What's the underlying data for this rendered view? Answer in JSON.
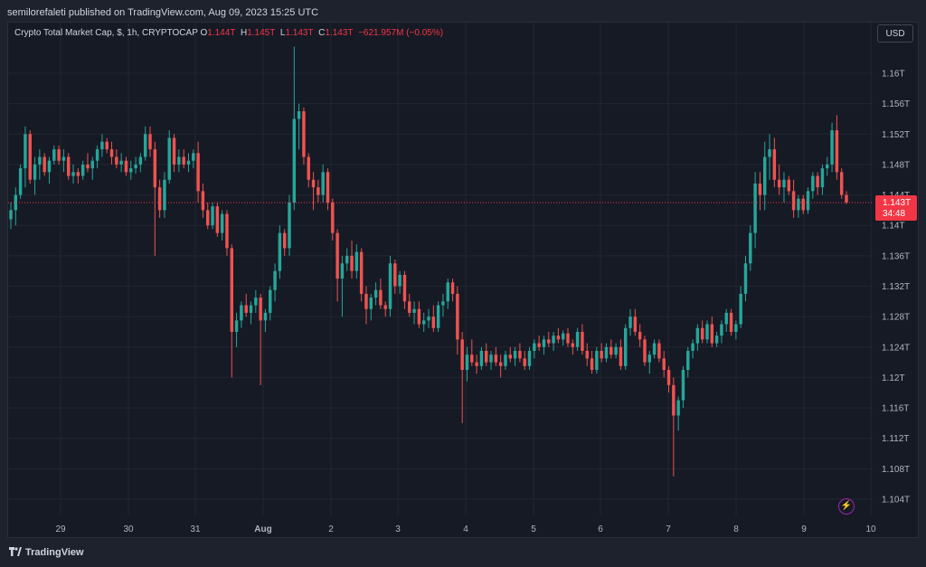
{
  "published_text": "semilorefaleti published on TradingView.com, Aug 09, 2023 15:25 UTC",
  "legend": {
    "symbol": "Crypto Total Market Cap, $, 1h, CRYPTOCAP",
    "o_label": "O",
    "o_value": "1.144T",
    "h_label": "H",
    "h_value": "1.145T",
    "l_label": "L",
    "l_value": "1.143T",
    "c_label": "C",
    "c_value": "1.143T",
    "change": "−621.957M (−0.05%)"
  },
  "currency_button": "USD",
  "footer_brand": "TradingView",
  "colors": {
    "up": "#26a69a",
    "down": "#ef5350",
    "background": "#161a25",
    "grid": "#222631",
    "last_price_bg": "#f23645"
  },
  "icons": {
    "flash": "lightning-icon",
    "brand": "tradingview-logo-icon"
  },
  "chart_data": {
    "type": "candlestick",
    "ylim": [
      1.102,
      1.164
    ],
    "y_unit": "T",
    "y_ticks": [
      "1.16T",
      "1.156T",
      "1.152T",
      "1.148T",
      "1.144T",
      "1.14T",
      "1.136T",
      "1.132T",
      "1.128T",
      "1.124T",
      "1.12T",
      "1.116T",
      "1.112T",
      "1.108T",
      "1.104T"
    ],
    "y_tick_values": [
      1.16,
      1.156,
      1.152,
      1.148,
      1.144,
      1.14,
      1.136,
      1.132,
      1.128,
      1.124,
      1.12,
      1.116,
      1.112,
      1.108,
      1.104
    ],
    "x_ticks": [
      "29",
      "30",
      "31",
      "Aug",
      "2",
      "3",
      "4",
      "5",
      "6",
      "7",
      "8",
      "9",
      "10"
    ],
    "last_price": {
      "value": 1.143,
      "label": "1.143T",
      "countdown": "34:48"
    },
    "ohlc": [
      [
        1.1408,
        1.143,
        1.1395,
        1.142
      ],
      [
        1.142,
        1.145,
        1.14,
        1.144
      ],
      [
        1.144,
        1.148,
        1.1435,
        1.1475
      ],
      [
        1.1475,
        1.153,
        1.145,
        1.152
      ],
      [
        1.152,
        1.1525,
        1.1455,
        1.146
      ],
      [
        1.146,
        1.149,
        1.144,
        1.148
      ],
      [
        1.148,
        1.15,
        1.146,
        1.149
      ],
      [
        1.149,
        1.1495,
        1.1465,
        1.147
      ],
      [
        1.147,
        1.149,
        1.1455,
        1.1485
      ],
      [
        1.1485,
        1.1505,
        1.148,
        1.15
      ],
      [
        1.15,
        1.1505,
        1.148,
        1.1485
      ],
      [
        1.1485,
        1.15,
        1.147,
        1.149
      ],
      [
        1.149,
        1.1495,
        1.146,
        1.1465
      ],
      [
        1.1465,
        1.148,
        1.1455,
        1.147
      ],
      [
        1.147,
        1.1475,
        1.1455,
        1.1465
      ],
      [
        1.1465,
        1.1485,
        1.146,
        1.148
      ],
      [
        1.148,
        1.1495,
        1.147,
        1.1475
      ],
      [
        1.1475,
        1.149,
        1.146,
        1.1485
      ],
      [
        1.1485,
        1.1505,
        1.1475,
        1.15
      ],
      [
        1.15,
        1.152,
        1.149,
        1.151
      ],
      [
        1.151,
        1.1515,
        1.1495,
        1.15
      ],
      [
        1.15,
        1.151,
        1.148,
        1.149
      ],
      [
        1.149,
        1.15,
        1.1475,
        1.148
      ],
      [
        1.148,
        1.1495,
        1.147,
        1.1485
      ],
      [
        1.1485,
        1.149,
        1.1465,
        1.147
      ],
      [
        1.147,
        1.1485,
        1.146,
        1.1475
      ],
      [
        1.1475,
        1.149,
        1.1468,
        1.148
      ],
      [
        1.148,
        1.1495,
        1.147,
        1.149
      ],
      [
        1.149,
        1.153,
        1.1485,
        1.152
      ],
      [
        1.152,
        1.153,
        1.149,
        1.15
      ],
      [
        1.15,
        1.151,
        1.136,
        1.145
      ],
      [
        1.145,
        1.146,
        1.141,
        1.142
      ],
      [
        1.142,
        1.147,
        1.141,
        1.146
      ],
      [
        1.146,
        1.1525,
        1.1455,
        1.1515
      ],
      [
        1.1515,
        1.152,
        1.147,
        1.148
      ],
      [
        1.148,
        1.15,
        1.147,
        1.149
      ],
      [
        1.149,
        1.15,
        1.1475,
        1.148
      ],
      [
        1.148,
        1.1495,
        1.147,
        1.1485
      ],
      [
        1.1485,
        1.15,
        1.1475,
        1.1495
      ],
      [
        1.1495,
        1.151,
        1.143,
        1.1445
      ],
      [
        1.1445,
        1.1455,
        1.141,
        1.142
      ],
      [
        1.142,
        1.143,
        1.1395,
        1.14
      ],
      [
        1.14,
        1.143,
        1.1395,
        1.1425
      ],
      [
        1.1425,
        1.143,
        1.1385,
        1.139
      ],
      [
        1.139,
        1.142,
        1.138,
        1.1415
      ],
      [
        1.1415,
        1.142,
        1.136,
        1.137
      ],
      [
        1.137,
        1.1375,
        1.12,
        1.126
      ],
      [
        1.126,
        1.1285,
        1.124,
        1.1275
      ],
      [
        1.1275,
        1.13,
        1.1265,
        1.1295
      ],
      [
        1.1295,
        1.131,
        1.128,
        1.1285
      ],
      [
        1.1285,
        1.13,
        1.127,
        1.1295
      ],
      [
        1.1295,
        1.1315,
        1.1285,
        1.1305
      ],
      [
        1.1305,
        1.131,
        1.119,
        1.1275
      ],
      [
        1.1275,
        1.129,
        1.126,
        1.1285
      ],
      [
        1.1285,
        1.132,
        1.1275,
        1.1315
      ],
      [
        1.1315,
        1.135,
        1.13,
        1.134
      ],
      [
        1.134,
        1.14,
        1.133,
        1.139
      ],
      [
        1.139,
        1.1395,
        1.136,
        1.137
      ],
      [
        1.137,
        1.144,
        1.136,
        1.143
      ],
      [
        1.143,
        1.1635,
        1.142,
        1.154
      ],
      [
        1.154,
        1.156,
        1.15,
        1.155
      ],
      [
        1.155,
        1.1555,
        1.148,
        1.149
      ],
      [
        1.149,
        1.1495,
        1.145,
        1.146
      ],
      [
        1.146,
        1.147,
        1.142,
        1.145
      ],
      [
        1.145,
        1.146,
        1.143,
        1.144
      ],
      [
        1.144,
        1.148,
        1.143,
        1.147
      ],
      [
        1.147,
        1.1475,
        1.142,
        1.143
      ],
      [
        1.143,
        1.1435,
        1.138,
        1.139
      ],
      [
        1.139,
        1.1395,
        1.13,
        1.133
      ],
      [
        1.133,
        1.136,
        1.128,
        1.135
      ],
      [
        1.135,
        1.137,
        1.134,
        1.136
      ],
      [
        1.136,
        1.138,
        1.133,
        1.134
      ],
      [
        1.134,
        1.1375,
        1.133,
        1.1365
      ],
      [
        1.1365,
        1.137,
        1.13,
        1.131
      ],
      [
        1.131,
        1.132,
        1.127,
        1.129
      ],
      [
        1.129,
        1.131,
        1.1275,
        1.1305
      ],
      [
        1.1305,
        1.1325,
        1.1295,
        1.1315
      ],
      [
        1.1315,
        1.133,
        1.129,
        1.1295
      ],
      [
        1.1295,
        1.13,
        1.128,
        1.129
      ],
      [
        1.129,
        1.136,
        1.128,
        1.135
      ],
      [
        1.135,
        1.1355,
        1.131,
        1.132
      ],
      [
        1.132,
        1.134,
        1.131,
        1.1335
      ],
      [
        1.1335,
        1.134,
        1.129,
        1.13
      ],
      [
        1.13,
        1.131,
        1.128,
        1.1285
      ],
      [
        1.1285,
        1.13,
        1.127,
        1.129
      ],
      [
        1.129,
        1.13,
        1.1265,
        1.127
      ],
      [
        1.127,
        1.1285,
        1.126,
        1.1275
      ],
      [
        1.1275,
        1.129,
        1.1265,
        1.128
      ],
      [
        1.128,
        1.1295,
        1.126,
        1.1265
      ],
      [
        1.1265,
        1.13,
        1.126,
        1.1295
      ],
      [
        1.1295,
        1.131,
        1.128,
        1.13
      ],
      [
        1.13,
        1.133,
        1.129,
        1.1325
      ],
      [
        1.1325,
        1.133,
        1.13,
        1.131
      ],
      [
        1.131,
        1.132,
        1.123,
        1.125
      ],
      [
        1.125,
        1.126,
        1.114,
        1.121
      ],
      [
        1.121,
        1.124,
        1.1195,
        1.123
      ],
      [
        1.123,
        1.125,
        1.1215,
        1.122
      ],
      [
        1.122,
        1.123,
        1.1205,
        1.1215
      ],
      [
        1.1215,
        1.124,
        1.121,
        1.1235
      ],
      [
        1.1235,
        1.1245,
        1.1215,
        1.122
      ],
      [
        1.122,
        1.1235,
        1.121,
        1.123
      ],
      [
        1.123,
        1.124,
        1.1215,
        1.122
      ],
      [
        1.122,
        1.123,
        1.12,
        1.1215
      ],
      [
        1.1215,
        1.1235,
        1.121,
        1.123
      ],
      [
        1.123,
        1.124,
        1.122,
        1.1225
      ],
      [
        1.1225,
        1.124,
        1.1215,
        1.1235
      ],
      [
        1.1235,
        1.1245,
        1.122,
        1.1225
      ],
      [
        1.1225,
        1.1235,
        1.121,
        1.1215
      ],
      [
        1.1215,
        1.124,
        1.121,
        1.1235
      ],
      [
        1.1235,
        1.125,
        1.1225,
        1.1245
      ],
      [
        1.1245,
        1.1255,
        1.1235,
        1.124
      ],
      [
        1.124,
        1.1255,
        1.123,
        1.125
      ],
      [
        1.125,
        1.126,
        1.124,
        1.1245
      ],
      [
        1.1245,
        1.126,
        1.1235,
        1.1255
      ],
      [
        1.1255,
        1.1265,
        1.1245,
        1.125
      ],
      [
        1.125,
        1.1262,
        1.1242,
        1.1258
      ],
      [
        1.1258,
        1.1265,
        1.124,
        1.1245
      ],
      [
        1.1245,
        1.125,
        1.123,
        1.124
      ],
      [
        1.124,
        1.1265,
        1.1235,
        1.126
      ],
      [
        1.126,
        1.127,
        1.123,
        1.1235
      ],
      [
        1.1235,
        1.1245,
        1.1215,
        1.1225
      ],
      [
        1.1225,
        1.1235,
        1.1205,
        1.121
      ],
      [
        1.121,
        1.124,
        1.1205,
        1.1235
      ],
      [
        1.1235,
        1.1245,
        1.122,
        1.1225
      ],
      [
        1.1225,
        1.1245,
        1.122,
        1.124
      ],
      [
        1.124,
        1.125,
        1.1225,
        1.123
      ],
      [
        1.123,
        1.1245,
        1.1225,
        1.124
      ],
      [
        1.124,
        1.125,
        1.121,
        1.1215
      ],
      [
        1.1215,
        1.127,
        1.121,
        1.1265
      ],
      [
        1.1265,
        1.129,
        1.1255,
        1.128
      ],
      [
        1.128,
        1.129,
        1.1255,
        1.126
      ],
      [
        1.126,
        1.127,
        1.124,
        1.125
      ],
      [
        1.125,
        1.1255,
        1.1215,
        1.122
      ],
      [
        1.122,
        1.1235,
        1.1205,
        1.123
      ],
      [
        1.123,
        1.125,
        1.1225,
        1.1245
      ],
      [
        1.1245,
        1.125,
        1.122,
        1.1225
      ],
      [
        1.1225,
        1.1235,
        1.12,
        1.121
      ],
      [
        1.121,
        1.1215,
        1.118,
        1.119
      ],
      [
        1.119,
        1.12,
        1.107,
        1.115
      ],
      [
        1.115,
        1.1175,
        1.113,
        1.117
      ],
      [
        1.117,
        1.1215,
        1.116,
        1.121
      ],
      [
        1.121,
        1.124,
        1.12,
        1.1235
      ],
      [
        1.1235,
        1.125,
        1.1225,
        1.1245
      ],
      [
        1.1245,
        1.127,
        1.1235,
        1.1265
      ],
      [
        1.1265,
        1.1275,
        1.1245,
        1.125
      ],
      [
        1.125,
        1.1275,
        1.1245,
        1.127
      ],
      [
        1.127,
        1.128,
        1.124,
        1.1245
      ],
      [
        1.1245,
        1.126,
        1.124,
        1.1255
      ],
      [
        1.1255,
        1.1275,
        1.1245,
        1.127
      ],
      [
        1.127,
        1.129,
        1.126,
        1.1285
      ],
      [
        1.1285,
        1.129,
        1.1255,
        1.126
      ],
      [
        1.126,
        1.1275,
        1.125,
        1.127
      ],
      [
        1.127,
        1.132,
        1.1265,
        1.131
      ],
      [
        1.131,
        1.136,
        1.13,
        1.135
      ],
      [
        1.135,
        1.14,
        1.134,
        1.139
      ],
      [
        1.139,
        1.147,
        1.137,
        1.1455
      ],
      [
        1.1455,
        1.147,
        1.142,
        1.144
      ],
      [
        1.144,
        1.151,
        1.142,
        1.149
      ],
      [
        1.149,
        1.152,
        1.146,
        1.15
      ],
      [
        1.15,
        1.1515,
        1.145,
        1.146
      ],
      [
        1.146,
        1.148,
        1.144,
        1.145
      ],
      [
        1.145,
        1.147,
        1.143,
        1.146
      ],
      [
        1.146,
        1.1465,
        1.144,
        1.1445
      ],
      [
        1.1445,
        1.146,
        1.141,
        1.142
      ],
      [
        1.142,
        1.144,
        1.141,
        1.1435
      ],
      [
        1.1435,
        1.144,
        1.1415,
        1.142
      ],
      [
        1.142,
        1.145,
        1.1415,
        1.1445
      ],
      [
        1.1445,
        1.147,
        1.1435,
        1.1465
      ],
      [
        1.1465,
        1.147,
        1.144,
        1.145
      ],
      [
        1.145,
        1.148,
        1.144,
        1.1475
      ],
      [
        1.1475,
        1.149,
        1.1465,
        1.148
      ],
      [
        1.148,
        1.1535,
        1.147,
        1.1525
      ],
      [
        1.1525,
        1.1545,
        1.146,
        1.147
      ],
      [
        1.147,
        1.1475,
        1.1435,
        1.144
      ],
      [
        1.144,
        1.1445,
        1.1428,
        1.143
      ]
    ]
  }
}
